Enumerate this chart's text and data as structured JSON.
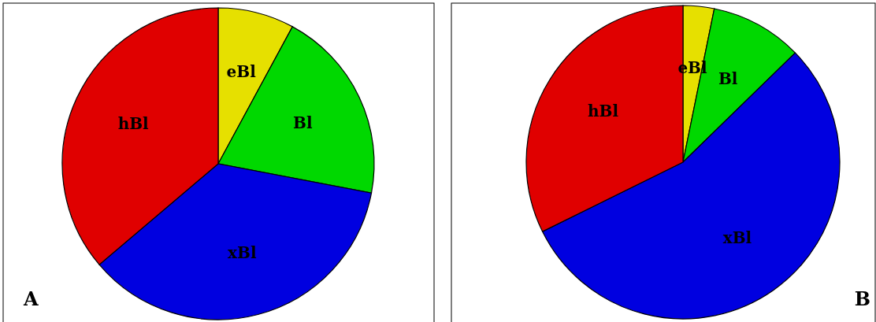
{
  "chart_data": [
    {
      "type": "pie",
      "categories": [
        "eBl",
        "Bl",
        "xBl",
        "hBl"
      ],
      "values": [
        7.9,
        20.1,
        35.8,
        36.2
      ],
      "colors": [
        "#e6e000",
        "#00d800",
        "#0000e0",
        "#e00000"
      ],
      "annotations": [
        "A"
      ]
    },
    {
      "type": "pie",
      "categories": [
        "eBl",
        "Bl",
        "xBl",
        "hBl"
      ],
      "values": [
        3.2,
        9.5,
        55.0,
        32.3
      ],
      "colors": [
        "#e6e000",
        "#00d800",
        "#0000e0",
        "#e00000"
      ],
      "annotations": [
        "B"
      ]
    }
  ]
}
